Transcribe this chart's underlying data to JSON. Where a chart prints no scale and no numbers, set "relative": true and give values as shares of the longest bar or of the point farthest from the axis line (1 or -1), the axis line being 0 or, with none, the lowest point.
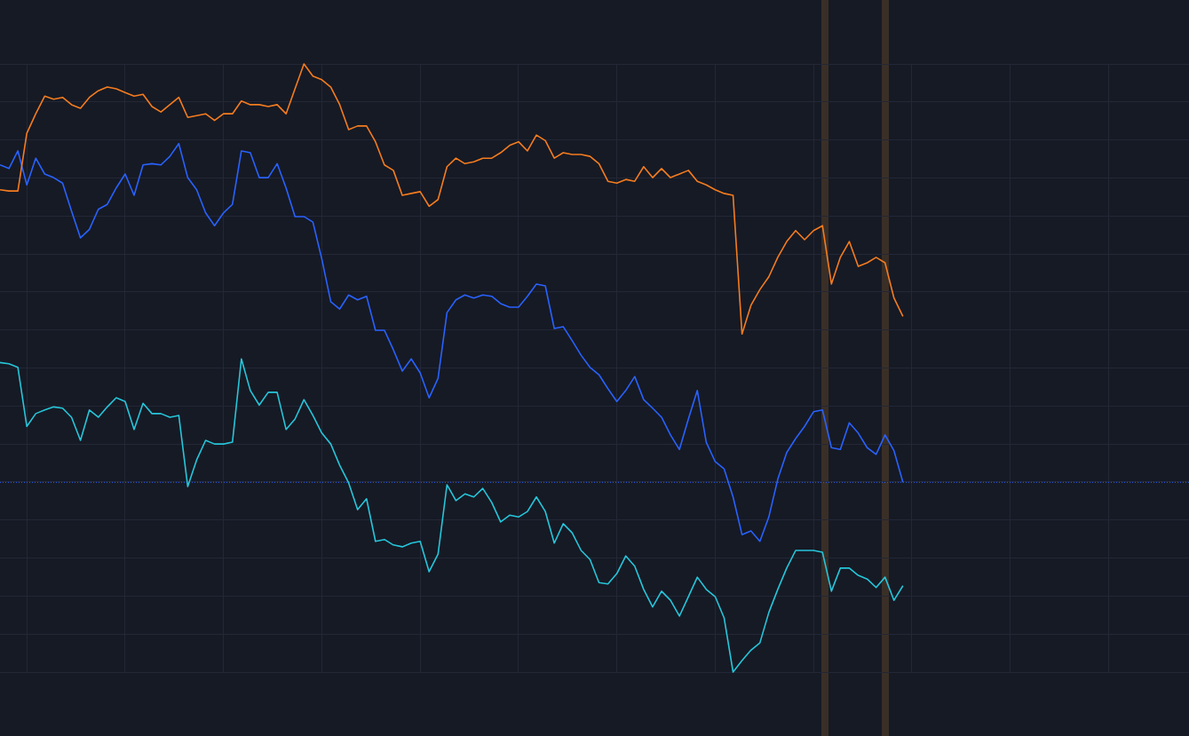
{
  "chart_data": {
    "type": "line",
    "relative": true,
    "grid": true,
    "legend": false,
    "categories": [
      null,
      null,
      null,
      null,
      null,
      null,
      null,
      null,
      null,
      null,
      null,
      null,
      null,
      null,
      null,
      null,
      null,
      null,
      null,
      null,
      null,
      null,
      null,
      null,
      null,
      null,
      null,
      null,
      null,
      null,
      null,
      null,
      null,
      null,
      null,
      null,
      null,
      null,
      null,
      null,
      null,
      null,
      null,
      null,
      null,
      null,
      null,
      null,
      null,
      null,
      null,
      null,
      null,
      null,
      null,
      null,
      null,
      null,
      null,
      null,
      null,
      null,
      null,
      null,
      null,
      null,
      null,
      null,
      null,
      null,
      null,
      null,
      null,
      null,
      null,
      null,
      null,
      null,
      null,
      null,
      null,
      null,
      null,
      null,
      null,
      null,
      null,
      null,
      null,
      null,
      null,
      null,
      null,
      null,
      null,
      null,
      null,
      null,
      null,
      null,
      null,
      null,
      null,
      null,
      null,
      null,
      null,
      null,
      null,
      null,
      null,
      null,
      null,
      null,
      null,
      null,
      null,
      null,
      null,
      null,
      null,
      null,
      null,
      null,
      null,
      null,
      null,
      null,
      null,
      null,
      null,
      null,
      null,
      null
    ],
    "series": [
      {
        "color": "#f57c1f",
        "values": [
          0.793,
          0.791,
          0.791,
          0.886,
          0.918,
          0.947,
          0.942,
          0.945,
          0.933,
          0.927,
          0.945,
          0.956,
          0.962,
          0.959,
          0.953,
          0.947,
          0.95,
          0.93,
          0.921,
          0.933,
          0.945,
          0.912,
          0.915,
          0.918,
          0.907,
          0.918,
          0.918,
          0.939,
          0.933,
          0.933,
          0.93,
          0.933,
          0.918,
          0.959,
          1.0,
          0.98,
          0.974,
          0.962,
          0.933,
          0.892,
          0.898,
          0.898,
          0.872,
          0.834,
          0.825,
          0.784,
          0.787,
          0.79,
          0.766,
          0.777,
          0.831,
          0.845,
          0.836,
          0.839,
          0.845,
          0.845,
          0.854,
          0.866,
          0.872,
          0.857,
          0.883,
          0.874,
          0.845,
          0.854,
          0.851,
          0.851,
          0.848,
          0.836,
          0.807,
          0.804,
          0.81,
          0.807,
          0.831,
          0.813,
          0.828,
          0.813,
          0.819,
          0.825,
          0.807,
          0.801,
          0.793,
          0.787,
          0.784,
          0.556,
          0.603,
          0.629,
          0.65,
          0.682,
          0.708,
          0.726,
          0.711,
          0.726,
          0.734,
          0.638,
          0.682,
          0.708,
          0.667,
          0.673,
          0.682,
          0.673,
          0.615,
          0.585,
          null,
          null,
          null,
          null,
          null,
          null,
          null,
          null,
          null,
          null,
          null,
          null,
          null,
          null,
          null,
          null,
          null,
          null,
          null,
          null,
          null,
          null,
          null,
          null,
          null,
          null,
          null,
          null,
          null,
          null,
          null,
          null
        ]
      },
      {
        "color": "#2962ff",
        "values": [
          0.834,
          0.828,
          0.857,
          0.801,
          0.845,
          0.819,
          0.813,
          0.804,
          0.758,
          0.714,
          0.728,
          0.761,
          0.769,
          0.796,
          0.819,
          0.784,
          0.834,
          0.836,
          0.834,
          0.848,
          0.869,
          0.813,
          0.793,
          0.755,
          0.734,
          0.755,
          0.769,
          0.857,
          0.854,
          0.813,
          0.813,
          0.836,
          0.796,
          0.749,
          0.749,
          0.74,
          0.679,
          0.609,
          0.597,
          0.62,
          0.612,
          0.618,
          0.562,
          0.562,
          0.53,
          0.495,
          0.515,
          0.492,
          0.451,
          0.483,
          0.591,
          0.612,
          0.62,
          0.615,
          0.62,
          0.618,
          0.606,
          0.6,
          0.6,
          0.618,
          0.638,
          0.635,
          0.565,
          0.568,
          0.545,
          0.521,
          0.501,
          0.489,
          0.466,
          0.445,
          0.463,
          0.486,
          0.448,
          0.434,
          0.419,
          0.39,
          0.366,
          0.416,
          0.463,
          0.378,
          0.346,
          0.334,
          0.288,
          0.226,
          0.232,
          0.215,
          0.255,
          0.317,
          0.361,
          0.384,
          0.404,
          0.428,
          0.431,
          0.369,
          0.366,
          0.41,
          0.393,
          0.369,
          0.358,
          0.39,
          0.364,
          0.312,
          null,
          null,
          null,
          null,
          null,
          null,
          null,
          null,
          null,
          null,
          null,
          null,
          null,
          null,
          null,
          null,
          null,
          null,
          null,
          null,
          null,
          null,
          null,
          null,
          null,
          null,
          null,
          null,
          null,
          null,
          null,
          null
        ]
      },
      {
        "color": "#26c6da",
        "values": [
          0.509,
          0.507,
          0.501,
          0.404,
          0.425,
          0.431,
          0.436,
          0.434,
          0.419,
          0.381,
          0.431,
          0.419,
          0.436,
          0.451,
          0.445,
          0.399,
          0.442,
          0.425,
          0.425,
          0.419,
          0.422,
          0.305,
          0.349,
          0.381,
          0.375,
          0.375,
          0.378,
          0.515,
          0.463,
          0.439,
          0.46,
          0.46,
          0.399,
          0.416,
          0.448,
          0.422,
          0.393,
          0.375,
          0.34,
          0.311,
          0.267,
          0.285,
          0.215,
          0.218,
          0.209,
          0.206,
          0.212,
          0.215,
          0.165,
          0.194,
          0.308,
          0.282,
          0.293,
          0.288,
          0.302,
          0.279,
          0.247,
          0.258,
          0.255,
          0.264,
          0.288,
          0.264,
          0.212,
          0.244,
          0.229,
          0.2,
          0.185,
          0.147,
          0.145,
          0.162,
          0.191,
          0.174,
          0.136,
          0.107,
          0.133,
          0.118,
          0.092,
          0.124,
          0.156,
          0.136,
          0.124,
          0.089,
          0,
          0.019,
          0.036,
          0.048,
          0.098,
          0.136,
          0.171,
          0.2,
          0.2,
          0.2,
          0.197,
          0.133,
          0.171,
          0.171,
          0.159,
          0.153,
          0.139,
          0.156,
          0.118,
          0.142,
          null,
          null,
          null,
          null,
          null,
          null,
          null,
          null,
          null,
          null,
          null,
          null,
          null,
          null,
          null,
          null,
          null,
          null,
          null,
          null,
          null,
          null,
          null,
          null,
          null,
          null,
          null,
          null,
          null,
          null,
          null,
          null
        ]
      }
    ],
    "ref_lines": [
      {
        "axis": "y",
        "value": 0.312,
        "color": "#2962ff",
        "line_style": "dotted"
      }
    ]
  }
}
